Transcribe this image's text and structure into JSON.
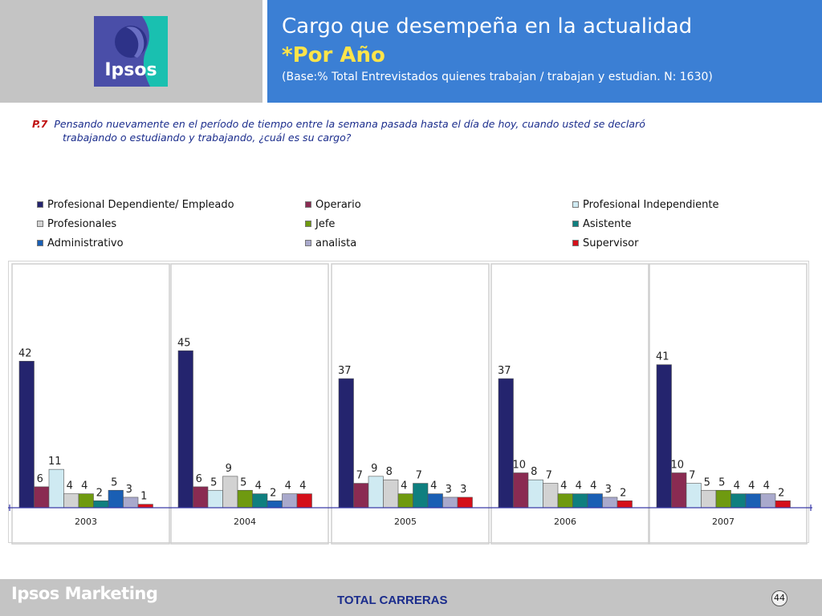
{
  "header": {
    "logo_text": "Ipsos",
    "title": "Cargo que desempeña en la actualidad",
    "subtitle": "*Por Año",
    "base": "(Base:% Total Entrevistados quienes trabajan / trabajan y estudian. N: 1630)"
  },
  "question": {
    "number": "P.7",
    "line1": "Pensando nuevamente en el período de tiempo entre la semana pasada hasta el día de hoy, cuando usted se declaró",
    "line2": "trabajando o estudiando y trabajando, ¿cuál es su cargo?"
  },
  "footer": {
    "brand": "Ipsos Marketing",
    "total": "TOTAL CARRERAS",
    "page": "44"
  },
  "colors": {
    "header_blue": "#3b7fd4",
    "header_gray": "#c4c4c4",
    "subtitle_yellow": "#ffe44a",
    "question_blue": "#1a2c8c"
  },
  "chart_data": {
    "type": "bar",
    "categories": [
      "2003",
      "2004",
      "2005",
      "2006",
      "2007"
    ],
    "legend_position": "top",
    "series": [
      {
        "name": "Profesional Dependiente/ Empleado",
        "color": "#24246e",
        "values": [
          42,
          45,
          37,
          37,
          41
        ]
      },
      {
        "name": "Operario",
        "color": "#8a2b52",
        "values": [
          6,
          6,
          7,
          10,
          10
        ]
      },
      {
        "name": "Profesional Independiente",
        "color": "#cfeaf2",
        "values": [
          11,
          5,
          9,
          8,
          7
        ]
      },
      {
        "name": "Profesionales",
        "color": "#d2d2d2",
        "values": [
          4,
          9,
          8,
          7,
          5
        ]
      },
      {
        "name": "Jefe",
        "color": "#6f9a10",
        "values": [
          4,
          5,
          4,
          4,
          5
        ]
      },
      {
        "name": "Asistente",
        "color": "#0f7f7f",
        "values": [
          2,
          4,
          7,
          4,
          4
        ]
      },
      {
        "name": "Administrativo",
        "color": "#1a5fb4",
        "values": [
          5,
          2,
          4,
          4,
          4
        ]
      },
      {
        "name": "analista",
        "color": "#a9a9cc",
        "values": [
          3,
          4,
          3,
          3,
          4
        ]
      },
      {
        "name": "Supervisor",
        "color": "#d40f1a",
        "values": [
          1,
          4,
          3,
          2,
          2
        ]
      }
    ]
  }
}
